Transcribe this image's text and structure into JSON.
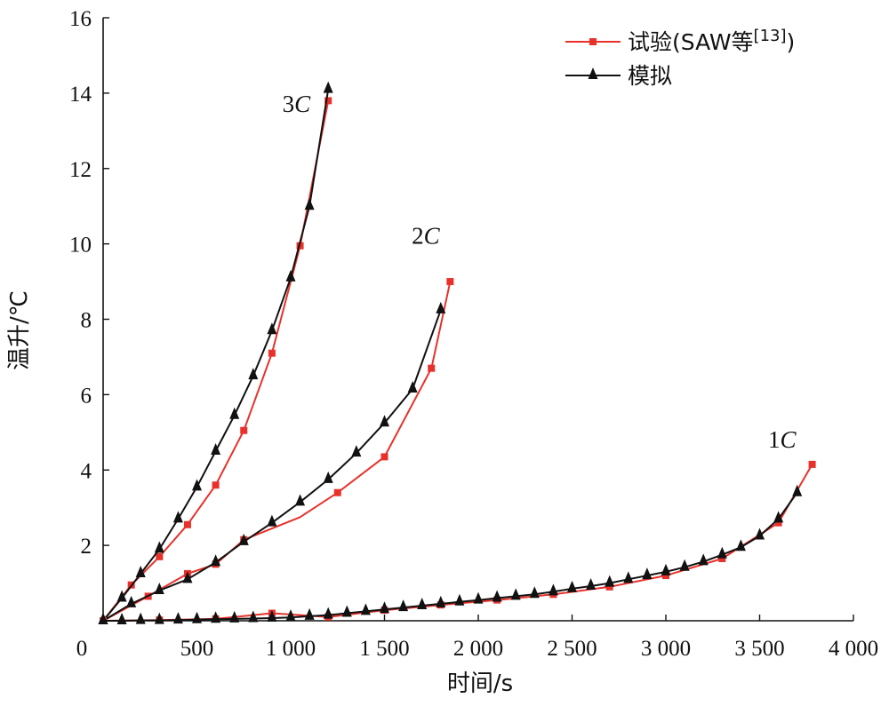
{
  "chart_data": {
    "type": "line",
    "xlabel": "时间/s",
    "ylabel": "温升/℃",
    "xlim": [
      0,
      4000
    ],
    "ylim": [
      0,
      16
    ],
    "x_ticks": [
      "0",
      "500",
      "1 000",
      "1 500",
      "2 000",
      "2 500",
      "3 000",
      "3 500",
      "4 000"
    ],
    "y_ticks": [
      "2",
      "4",
      "6",
      "8",
      "10",
      "12",
      "14",
      "16"
    ],
    "grid": false,
    "legend_position": "top-right",
    "legend": {
      "experiment": {
        "prefix": "试验(SAW等",
        "sup": "[13]",
        "suffix": ")"
      },
      "simulation": "模拟"
    },
    "colors": {
      "experiment": "#e8312a",
      "simulation": "#111111"
    },
    "curve_labels": [
      {
        "num": "3",
        "letter": "C",
        "x": 1030,
        "y": 13.5
      },
      {
        "num": "2",
        "letter": "C",
        "x": 1720,
        "y": 10.0
      },
      {
        "num": "1",
        "letter": "C",
        "x": 3620,
        "y": 4.6
      }
    ],
    "series": [
      {
        "kind": "experiment",
        "group": "3C",
        "marker": "square",
        "x": [
          0,
          150,
          300,
          450,
          600,
          750,
          900,
          1050,
          1200
        ],
        "y": [
          0,
          0.95,
          1.7,
          2.55,
          3.6,
          5.05,
          7.1,
          9.95,
          13.8
        ]
      },
      {
        "kind": "simulation",
        "group": "3C",
        "marker": "triangle",
        "x": [
          0,
          100,
          200,
          300,
          400,
          500,
          600,
          700,
          800,
          900,
          1000,
          1100,
          1200
        ],
        "y": [
          0,
          0.6,
          1.25,
          1.9,
          2.7,
          3.55,
          4.5,
          5.45,
          6.5,
          7.7,
          9.1,
          11.0,
          14.1
        ]
      },
      {
        "kind": "experiment",
        "group": "2C",
        "marker": "square",
        "x": [
          0,
          240,
          450,
          600,
          750,
          1050,
          1250,
          1500,
          1750,
          1850
        ],
        "y": [
          0,
          0.65,
          1.25,
          1.5,
          2.15,
          2.75,
          3.4,
          4.35,
          6.7,
          9.0
        ],
        "marker_index": [
          1,
          2,
          3,
          4,
          6,
          7,
          8,
          9
        ]
      },
      {
        "kind": "simulation",
        "group": "2C",
        "marker": "triangle",
        "x": [
          0,
          150,
          300,
          450,
          600,
          750,
          900,
          1050,
          1200,
          1350,
          1500,
          1650,
          1800
        ],
        "y": [
          0,
          0.45,
          0.8,
          1.1,
          1.55,
          2.1,
          2.6,
          3.15,
          3.75,
          4.45,
          5.25,
          6.15,
          8.25
        ]
      },
      {
        "kind": "experiment",
        "group": "1C",
        "marker": "square",
        "x": [
          0,
          300,
          600,
          900,
          1200,
          1500,
          1800,
          2100,
          2400,
          2700,
          3000,
          3300,
          3600,
          3780
        ],
        "y": [
          0,
          0.02,
          0.05,
          0.2,
          0.1,
          0.28,
          0.42,
          0.55,
          0.7,
          0.9,
          1.2,
          1.65,
          2.6,
          4.15
        ]
      },
      {
        "kind": "simulation",
        "group": "1C",
        "marker": "triangle",
        "x": [
          0,
          100,
          200,
          300,
          400,
          500,
          600,
          700,
          800,
          900,
          1000,
          1100,
          1200,
          1300,
          1400,
          1500,
          1600,
          1700,
          1800,
          1900,
          2000,
          2100,
          2200,
          2300,
          2400,
          2500,
          2600,
          2700,
          2800,
          2900,
          3000,
          3100,
          3200,
          3300,
          3400,
          3500,
          3600,
          3700
        ],
        "y": [
          0,
          0,
          0.01,
          0.01,
          0.02,
          0.03,
          0.04,
          0.05,
          0.06,
          0.07,
          0.09,
          0.12,
          0.15,
          0.2,
          0.25,
          0.3,
          0.35,
          0.4,
          0.45,
          0.5,
          0.55,
          0.6,
          0.65,
          0.7,
          0.77,
          0.85,
          0.92,
          1.0,
          1.1,
          1.2,
          1.3,
          1.42,
          1.57,
          1.75,
          1.95,
          2.25,
          2.7,
          3.4
        ]
      }
    ]
  }
}
